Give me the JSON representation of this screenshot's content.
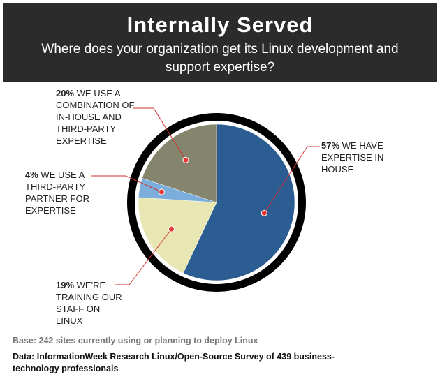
{
  "chart_data": {
    "type": "pie",
    "title": "Internally Served",
    "subtitle": "Where does your organization get its Linux development and support expertise?",
    "categories": [
      "WE HAVE EXPERTISE IN-HOUSE",
      "WE'RE TRAINING OUR STAFF ON LINUX",
      "WE USE A THIRD-PARTY PARTNER FOR EXPERTISE",
      "WE USE A COMBINATION OF IN-HOUSE AND THIRD-PARTY EXPERTISE"
    ],
    "values": [
      57,
      19,
      4,
      20
    ],
    "value_labels": [
      "57%",
      "19%",
      "4%",
      "20%"
    ],
    "colors": [
      "#2b5d93",
      "#e8e6b2",
      "#7caedb",
      "#85846d"
    ],
    "base_note": "Base: 242 sites currently using or planning to deploy Linux",
    "source": "Data: InformationWeek Research Linux/Open-Source Survey of 439 business-technology professionals"
  }
}
